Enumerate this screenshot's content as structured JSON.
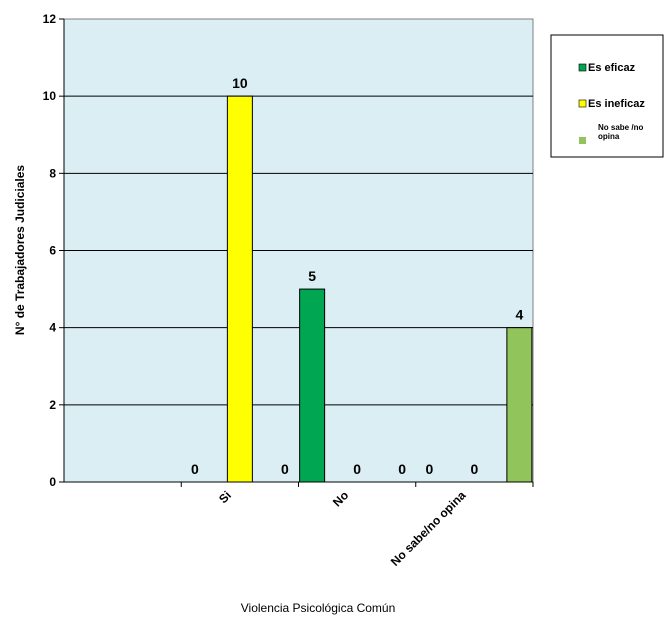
{
  "chart_data": {
    "type": "bar",
    "title": "",
    "xlabel": "Violencia Psicológica Común",
    "ylabel": "N° de Trabajadores Judiciales",
    "ylim": [
      0,
      12
    ],
    "yticks": [
      "0",
      "2",
      "4",
      "6",
      "8",
      "10",
      "12"
    ],
    "categories": [
      "",
      "Si",
      "No",
      "No sabe/no opina"
    ],
    "series": [
      {
        "name": "Es eficaz",
        "color": "#00a651",
        "values": [
          null,
          0,
          5,
          0
        ],
        "labels": [
          "",
          "0",
          "5",
          "0"
        ]
      },
      {
        "name": "Es ineficaz",
        "color": "#ffff00",
        "values": [
          null,
          10,
          0,
          0
        ],
        "labels": [
          "",
          "10",
          "0",
          "0"
        ]
      },
      {
        "name": "No sabe /no opina",
        "color": "#92c45c",
        "values": [
          null,
          0,
          0,
          4
        ],
        "labels": [
          "",
          "0",
          "0",
          "4"
        ]
      }
    ],
    "grid": true,
    "plot_background": "#dbeef4",
    "legend_position": "right"
  }
}
